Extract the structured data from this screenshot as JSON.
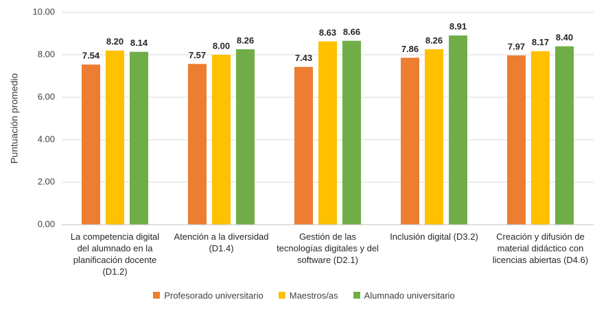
{
  "chart_data": {
    "type": "bar",
    "y_label": "Puntuación promedio",
    "categories": [
      "La competencia digital del alumnado en la planificación docente (D1.2)",
      "Atención a la diversidad (D1.4)",
      "Gestión de las tecnologías digitales y del software (D2.1)",
      "Inclusión digital (D3.2)",
      "Creación y difusión de material didáctico con licencias abiertas (D4.6)"
    ],
    "series": [
      {
        "name": "Profesorado universitario",
        "color": "#ed7d31",
        "values": [
          7.54,
          7.57,
          7.43,
          7.86,
          7.97
        ],
        "value_labels": [
          "7.54",
          "7.57",
          "7.43",
          "7.86",
          "7.97"
        ]
      },
      {
        "name": "Maestros/as",
        "color": "#ffc000",
        "values": [
          8.2,
          8.0,
          8.63,
          8.26,
          8.17
        ],
        "value_labels": [
          "8.20",
          "8.00",
          "8.63",
          "8.26",
          "8.17"
        ]
      },
      {
        "name": "Alumnado universitario",
        "color": "#70ad47",
        "values": [
          8.14,
          8.26,
          8.66,
          8.91,
          8.4
        ],
        "value_labels": [
          "8.14",
          "8.26",
          "8.66",
          "8.91",
          "8.40"
        ]
      }
    ],
    "ylim": [
      0,
      10
    ],
    "yticks": [
      {
        "value": 0,
        "label": "0.00"
      },
      {
        "value": 2,
        "label": "2.00"
      },
      {
        "value": 4,
        "label": "4.00"
      },
      {
        "value": 6,
        "label": "6.00"
      },
      {
        "value": 8,
        "label": "8.00"
      },
      {
        "value": 10,
        "label": "10.00"
      }
    ],
    "grid": true
  }
}
